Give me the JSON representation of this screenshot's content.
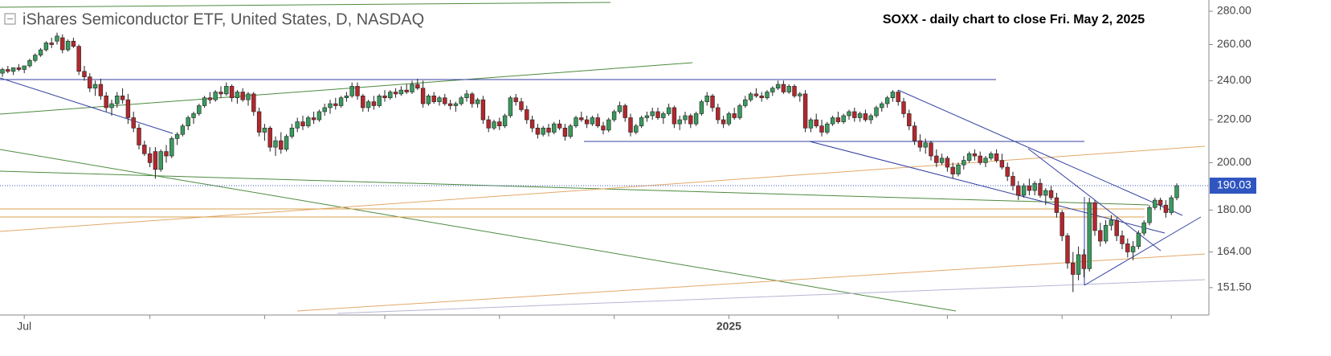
{
  "chart_data": {
    "type": "candlestick",
    "title": "iShares Semiconductor ETF, United States, D, NASDAQ",
    "annotation": "SOXX - daily chart to close Fri. May 2, 2025",
    "log_scale": true,
    "up_color": "#3b9a5e",
    "down_color": "#b3282d",
    "ylim": [
      142.8,
      287.1
    ],
    "yticks": [
      {
        "value": 151.5,
        "label": "151.50"
      },
      {
        "value": 164,
        "label": "164.00"
      },
      {
        "value": 180,
        "label": "180.00"
      },
      {
        "value": 200,
        "label": "200.00"
      },
      {
        "value": 220,
        "label": "220.00"
      },
      {
        "value": 240,
        "label": "240.00"
      },
      {
        "value": 260,
        "label": "260.00"
      },
      {
        "value": 280,
        "label": "280.00"
      }
    ],
    "xticks": [
      {
        "value": 4,
        "label": "Jul"
      },
      {
        "value": 133,
        "label": "2025"
      }
    ],
    "xminor": [
      27,
      48,
      70,
      91,
      112,
      153,
      173,
      194,
      214
    ],
    "last_price": {
      "value": 190.03,
      "label": "190.03"
    },
    "ohlc": [
      [
        244,
        247,
        242,
        246
      ],
      [
        246,
        248,
        244,
        245
      ],
      [
        245,
        247,
        243,
        247
      ],
      [
        247,
        249,
        245,
        246
      ],
      [
        246,
        248,
        244,
        248
      ],
      [
        248,
        252,
        247,
        251
      ],
      [
        251,
        255,
        250,
        254
      ],
      [
        254,
        258,
        253,
        257
      ],
      [
        257,
        262,
        256,
        261
      ],
      [
        261,
        264,
        258,
        260
      ],
      [
        262,
        267,
        260,
        265
      ],
      [
        264,
        266,
        255,
        257
      ],
      [
        257,
        263,
        256,
        262
      ],
      [
        262,
        264,
        258,
        259
      ],
      [
        259,
        260,
        243,
        245
      ],
      [
        245,
        248,
        240,
        242
      ],
      [
        242,
        244,
        234,
        236
      ],
      [
        236,
        240,
        232,
        238
      ],
      [
        238,
        241,
        230,
        232
      ],
      [
        232,
        234,
        224,
        226
      ],
      [
        226,
        230,
        222,
        228
      ],
      [
        228,
        234,
        226,
        232
      ],
      [
        232,
        236,
        228,
        230
      ],
      [
        230,
        233,
        218,
        221
      ],
      [
        221,
        224,
        214,
        216
      ],
      [
        216,
        218,
        206,
        208
      ],
      [
        208,
        210,
        203,
        204
      ],
      [
        204,
        207,
        198,
        200
      ],
      [
        205,
        207,
        193,
        197
      ],
      [
        197,
        206,
        196,
        205
      ],
      [
        205,
        208,
        200,
        203
      ],
      [
        203,
        212,
        202,
        211
      ],
      [
        211,
        214,
        208,
        213
      ],
      [
        213,
        218,
        212,
        217
      ],
      [
        217,
        222,
        215,
        221
      ],
      [
        221,
        224,
        218,
        223
      ],
      [
        223,
        228,
        222,
        227
      ],
      [
        227,
        232,
        226,
        231
      ],
      [
        231,
        234,
        228,
        230
      ],
      [
        230,
        235,
        229,
        234
      ],
      [
        234,
        237,
        231,
        233
      ],
      [
        233,
        239,
        232,
        237
      ],
      [
        237,
        238,
        229,
        231
      ],
      [
        231,
        235,
        228,
        234
      ],
      [
        234,
        236,
        229,
        230
      ],
      [
        230,
        234,
        227,
        233
      ],
      [
        233,
        234,
        222,
        224
      ],
      [
        224,
        226,
        212,
        214
      ],
      [
        214,
        218,
        210,
        216
      ],
      [
        216,
        217,
        205,
        207
      ],
      [
        207,
        212,
        203,
        210
      ],
      [
        210,
        214,
        204,
        206
      ],
      [
        206,
        213,
        205,
        212
      ],
      [
        212,
        218,
        211,
        216
      ],
      [
        216,
        221,
        214,
        219
      ],
      [
        219,
        222,
        215,
        217
      ],
      [
        217,
        222,
        216,
        221
      ],
      [
        221,
        224,
        218,
        220
      ],
      [
        220,
        225,
        219,
        224
      ],
      [
        224,
        228,
        222,
        226
      ],
      [
        226,
        230,
        223,
        228
      ],
      [
        228,
        231,
        225,
        227
      ],
      [
        227,
        232,
        226,
        231
      ],
      [
        231,
        234,
        229,
        232
      ],
      [
        232,
        239,
        231,
        237
      ],
      [
        237,
        239,
        230,
        232
      ],
      [
        232,
        233,
        224,
        226
      ],
      [
        226,
        230,
        224,
        229
      ],
      [
        229,
        232,
        225,
        227
      ],
      [
        227,
        233,
        226,
        232
      ],
      [
        232,
        235,
        229,
        231
      ],
      [
        231,
        235,
        230,
        234
      ],
      [
        234,
        236,
        231,
        233
      ],
      [
        233,
        237,
        232,
        235
      ],
      [
        235,
        238,
        233,
        234
      ],
      [
        234,
        240,
        233,
        238
      ],
      [
        238,
        241,
        235,
        236
      ],
      [
        236,
        240,
        226,
        228
      ],
      [
        228,
        233,
        227,
        232
      ],
      [
        232,
        234,
        228,
        229
      ],
      [
        229,
        232,
        227,
        231
      ],
      [
        231,
        233,
        227,
        228
      ],
      [
        228,
        230,
        225,
        227
      ],
      [
        227,
        229,
        224,
        228
      ],
      [
        228,
        232,
        227,
        231
      ],
      [
        231,
        235,
        229,
        233
      ],
      [
        233,
        234,
        226,
        228
      ],
      [
        228,
        231,
        226,
        230
      ],
      [
        230,
        232,
        218,
        220
      ],
      [
        220,
        222,
        214,
        216
      ],
      [
        216,
        220,
        215,
        219
      ],
      [
        219,
        221,
        215,
        217
      ],
      [
        217,
        223,
        216,
        222
      ],
      [
        222,
        232,
        221,
        231
      ],
      [
        231,
        233,
        227,
        229
      ],
      [
        229,
        231,
        224,
        225
      ],
      [
        225,
        227,
        218,
        220
      ],
      [
        220,
        222,
        214,
        216
      ],
      [
        216,
        218,
        211,
        213
      ],
      [
        213,
        217,
        212,
        216
      ],
      [
        216,
        218,
        212,
        214
      ],
      [
        214,
        219,
        213,
        218
      ],
      [
        218,
        220,
        215,
        216
      ],
      [
        216,
        218,
        210,
        212
      ],
      [
        212,
        218,
        211,
        217
      ],
      [
        217,
        222,
        216,
        221
      ],
      [
        221,
        224,
        219,
        220
      ],
      [
        220,
        222,
        216,
        218
      ],
      [
        218,
        222,
        217,
        221
      ],
      [
        221,
        223,
        216,
        217
      ],
      [
        217,
        219,
        213,
        215
      ],
      [
        215,
        221,
        214,
        220
      ],
      [
        220,
        225,
        219,
        224
      ],
      [
        224,
        229,
        223,
        227
      ],
      [
        227,
        228,
        219,
        221
      ],
      [
        221,
        223,
        212,
        214
      ],
      [
        214,
        218,
        213,
        217
      ],
      [
        217,
        222,
        216,
        221
      ],
      [
        221,
        224,
        219,
        222
      ],
      [
        222,
        226,
        220,
        224
      ],
      [
        224,
        226,
        220,
        221
      ],
      [
        221,
        224,
        218,
        223
      ],
      [
        223,
        228,
        222,
        226
      ],
      [
        226,
        227,
        216,
        218
      ],
      [
        218,
        222,
        215,
        220
      ],
      [
        220,
        224,
        218,
        222
      ],
      [
        222,
        223,
        216,
        218
      ],
      [
        218,
        224,
        217,
        223
      ],
      [
        223,
        230,
        222,
        229
      ],
      [
        229,
        234,
        227,
        232
      ],
      [
        232,
        233,
        224,
        226
      ],
      [
        226,
        228,
        218,
        220
      ],
      [
        220,
        222,
        216,
        218
      ],
      [
        218,
        224,
        217,
        223
      ],
      [
        223,
        226,
        220,
        221
      ],
      [
        221,
        228,
        220,
        227
      ],
      [
        227,
        232,
        226,
        230
      ],
      [
        230,
        234,
        229,
        233
      ],
      [
        233,
        236,
        231,
        232
      ],
      [
        232,
        234,
        229,
        231
      ],
      [
        231,
        235,
        230,
        234
      ],
      [
        234,
        237,
        232,
        236
      ],
      [
        236,
        240,
        235,
        238
      ],
      [
        238,
        240,
        233,
        234
      ],
      [
        234,
        238,
        233,
        237
      ],
      [
        237,
        238,
        231,
        232
      ],
      [
        232,
        234,
        229,
        233
      ],
      [
        233,
        235,
        214,
        216
      ],
      [
        216,
        221,
        214,
        220
      ],
      [
        220,
        223,
        216,
        217
      ],
      [
        217,
        220,
        212,
        214
      ],
      [
        214,
        219,
        213,
        218
      ],
      [
        218,
        222,
        217,
        221
      ],
      [
        221,
        224,
        218,
        219
      ],
      [
        219,
        223,
        218,
        222
      ],
      [
        222,
        225,
        220,
        224
      ],
      [
        224,
        226,
        219,
        221
      ],
      [
        221,
        224,
        219,
        223
      ],
      [
        223,
        225,
        219,
        220
      ],
      [
        220,
        223,
        218,
        222
      ],
      [
        222,
        227,
        221,
        226
      ],
      [
        226,
        229,
        224,
        228
      ],
      [
        228,
        232,
        226,
        231
      ],
      [
        231,
        235,
        229,
        234
      ],
      [
        234,
        235,
        227,
        229
      ],
      [
        229,
        231,
        221,
        223
      ],
      [
        223,
        225,
        215,
        217
      ],
      [
        217,
        219,
        208,
        210
      ],
      [
        210,
        213,
        205,
        207
      ],
      [
        207,
        211,
        204,
        209
      ],
      [
        209,
        210,
        201,
        203
      ],
      [
        203,
        206,
        198,
        200
      ],
      [
        200,
        204,
        199,
        202
      ],
      [
        202,
        203,
        196,
        198
      ],
      [
        198,
        200,
        193,
        195
      ],
      [
        195,
        200,
        194,
        199
      ],
      [
        199,
        203,
        197,
        201
      ],
      [
        201,
        205,
        200,
        204
      ],
      [
        204,
        206,
        201,
        203
      ],
      [
        203,
        205,
        199,
        200
      ],
      [
        200,
        203,
        198,
        202
      ],
      [
        202,
        205,
        201,
        204
      ],
      [
        204,
        206,
        200,
        201
      ],
      [
        201,
        204,
        197,
        198
      ],
      [
        198,
        200,
        192,
        194
      ],
      [
        194,
        196,
        188,
        190
      ],
      [
        190,
        192,
        184,
        186
      ],
      [
        186,
        191,
        185,
        190
      ],
      [
        190,
        193,
        186,
        188
      ],
      [
        188,
        192,
        186,
        191
      ],
      [
        191,
        193,
        185,
        186
      ],
      [
        186,
        189,
        182,
        188
      ],
      [
        188,
        190,
        184,
        185
      ],
      [
        185,
        187,
        177,
        179
      ],
      [
        179,
        180,
        168,
        170
      ],
      [
        170,
        171,
        158,
        160
      ],
      [
        160,
        164,
        150,
        156
      ],
      [
        156,
        166,
        154,
        163
      ],
      [
        163,
        165,
        155,
        158
      ],
      [
        158,
        185,
        157,
        183
      ],
      [
        183,
        184,
        170,
        172
      ],
      [
        172,
        175,
        166,
        168
      ],
      [
        168,
        176,
        167,
        174
      ],
      [
        174,
        178,
        172,
        176
      ],
      [
        176,
        177,
        168,
        170
      ],
      [
        170,
        172,
        165,
        167
      ],
      [
        167,
        169,
        162,
        164
      ],
      [
        164,
        168,
        161,
        166
      ],
      [
        166,
        172,
        165,
        171
      ],
      [
        171,
        176,
        170,
        175
      ],
      [
        175,
        182,
        174,
        181
      ],
      [
        181,
        185,
        180,
        184
      ],
      [
        184,
        185,
        180,
        182
      ],
      [
        182,
        184,
        177,
        179
      ],
      [
        179,
        186,
        178,
        185
      ],
      [
        185,
        191,
        184,
        190.03
      ]
    ]
  }
}
